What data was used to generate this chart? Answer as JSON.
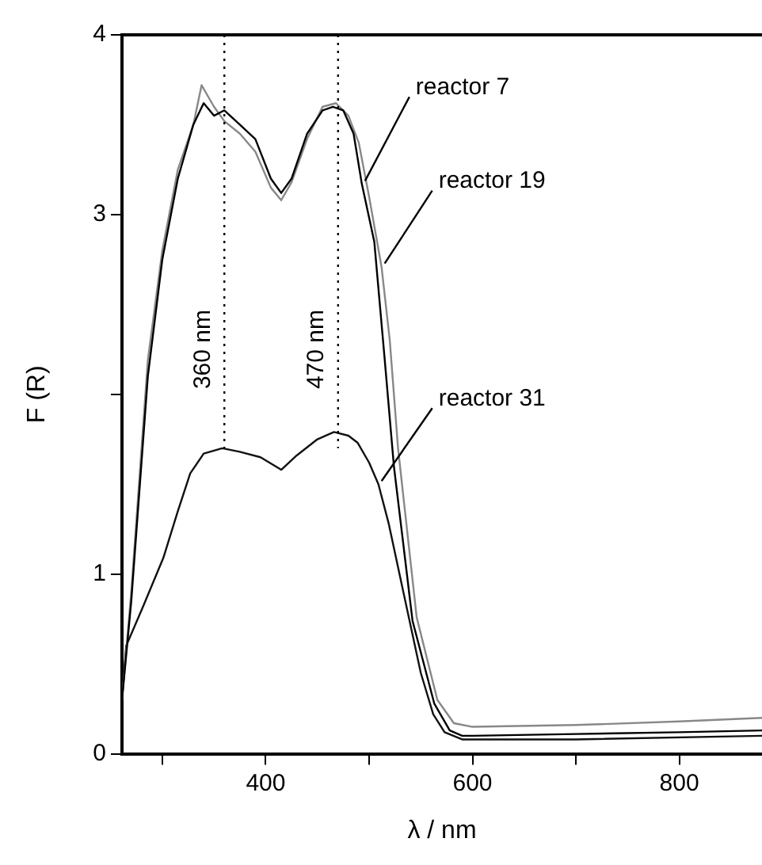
{
  "chart_data": {
    "type": "line",
    "xlabel": "λ / nm",
    "ylabel": "F (R)",
    "xlim": [
      261,
      880
    ],
    "ylim": [
      0,
      4
    ],
    "xticks": [
      {
        "value": 300,
        "label": null
      },
      400,
      {
        "value": 500,
        "label": null
      },
      600,
      {
        "value": 700,
        "label": null
      },
      800
    ],
    "yticks": [
      0,
      1,
      {
        "value": 2,
        "label": null
      },
      3,
      4
    ],
    "grid": false,
    "legend": false,
    "marker": "none",
    "line_style": "solid",
    "ref_lines": [
      {
        "axis": "x",
        "value": 360,
        "label": "360 nm",
        "line_style": "dotted",
        "color": "#000000"
      },
      {
        "axis": "x",
        "value": 470,
        "label": "470 nm",
        "line_style": "dotted",
        "color": "#000000"
      }
    ],
    "series": [
      {
        "name": "reactor 7",
        "color": "#000000",
        "x": [
          261,
          270,
          286,
          300,
          315,
          330,
          340,
          350,
          360,
          375,
          390,
          405,
          415,
          425,
          440,
          455,
          465,
          475,
          485,
          493,
          505,
          515,
          524,
          542,
          563,
          578,
          590,
          600,
          700,
          800,
          880
        ],
        "values": [
          0.3,
          0.85,
          2.1,
          2.75,
          3.2,
          3.5,
          3.62,
          3.55,
          3.58,
          3.5,
          3.42,
          3.2,
          3.12,
          3.2,
          3.45,
          3.58,
          3.6,
          3.58,
          3.45,
          3.17,
          2.85,
          2.2,
          1.6,
          0.74,
          0.28,
          0.13,
          0.1,
          0.1,
          0.11,
          0.12,
          0.13
        ]
      },
      {
        "name": "reactor 19",
        "color": "#888888",
        "x": [
          261,
          270,
          286,
          300,
          315,
          330,
          338,
          350,
          360,
          375,
          390,
          405,
          415,
          425,
          440,
          455,
          468,
          480,
          490,
          500,
          512,
          520,
          528,
          546,
          566,
          582,
          600,
          700,
          800,
          880
        ],
        "values": [
          0.3,
          0.9,
          2.19,
          2.8,
          3.25,
          3.5,
          3.72,
          3.6,
          3.52,
          3.45,
          3.35,
          3.15,
          3.08,
          3.18,
          3.42,
          3.6,
          3.62,
          3.55,
          3.4,
          3.1,
          2.71,
          2.3,
          1.7,
          0.76,
          0.3,
          0.17,
          0.15,
          0.16,
          0.18,
          0.2
        ]
      },
      {
        "name": "reactor 31",
        "color": "#111111",
        "x": [
          261,
          265,
          280,
          301,
          315,
          327,
          340,
          358,
          375,
          395,
          415,
          430,
          450,
          466,
          480,
          489,
          500,
          509,
          519,
          535,
          550,
          562,
          573,
          590,
          700,
          880
        ],
        "values": [
          0.3,
          0.6,
          0.8,
          1.09,
          1.35,
          1.56,
          1.67,
          1.7,
          1.68,
          1.65,
          1.58,
          1.66,
          1.75,
          1.79,
          1.77,
          1.73,
          1.62,
          1.5,
          1.28,
          0.85,
          0.45,
          0.22,
          0.12,
          0.08,
          0.08,
          0.1
        ]
      }
    ]
  }
}
